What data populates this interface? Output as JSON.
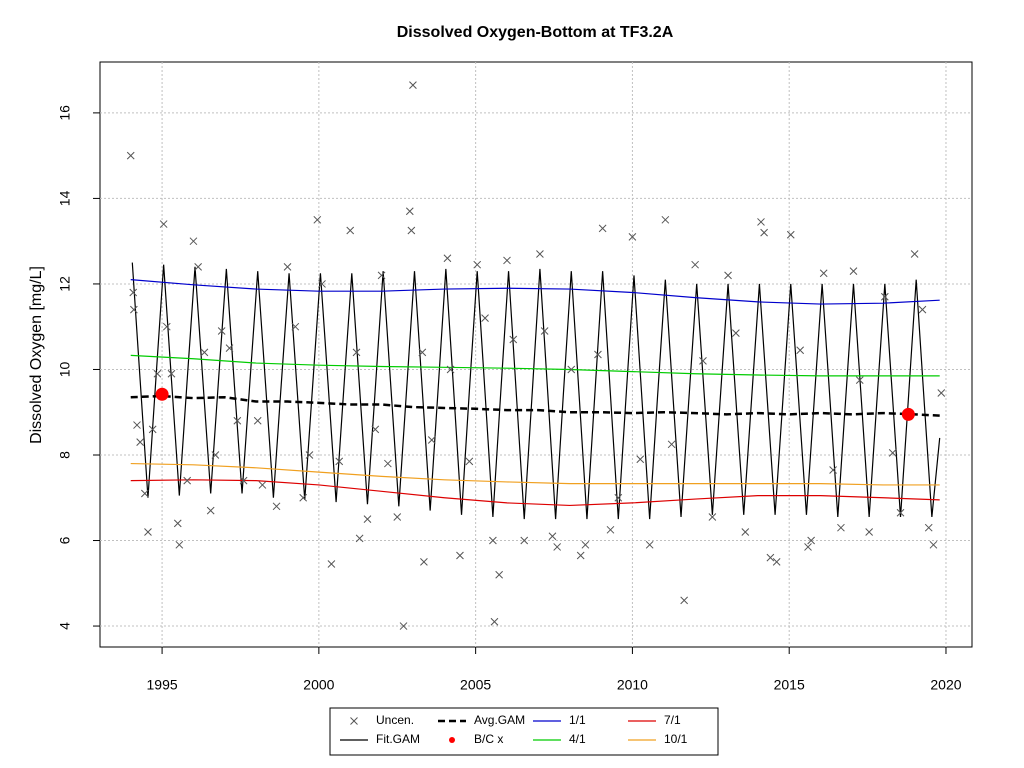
{
  "chart_data": {
    "type": "line",
    "title": "Dissolved Oxygen-Bottom at TF3.2A",
    "ylabel": "Dissolved Oxygen [mg/L]",
    "xlim": [
      1993.02,
      2020.83
    ],
    "ylim": [
      3.51,
      17.19
    ],
    "xticks": [
      1995,
      2000,
      2005,
      2010,
      2015,
      2020
    ],
    "yticks": [
      4,
      6,
      8,
      10,
      12,
      14,
      16
    ],
    "grid": true,
    "legend": "bottom",
    "series": [
      {
        "name": "Uncen.",
        "type": "scatter",
        "marker": "x",
        "color": "#555555",
        "x": [
          1994.0,
          1994.08,
          1994.1,
          1994.2,
          1994.3,
          1994.45,
          1994.55,
          1994.7,
          1994.85,
          1995.05,
          1995.15,
          1995.3,
          1995.5,
          1995.55,
          1995.8,
          1996.0,
          1996.15,
          1996.35,
          1996.55,
          1996.7,
          1996.9,
          1997.15,
          1997.4,
          1997.6,
          1998.05,
          1998.2,
          1998.65,
          1999.0,
          1999.25,
          1999.5,
          1999.7,
          1999.95,
          2000.1,
          2000.4,
          2000.65,
          2001.0,
          2001.2,
          2001.3,
          2001.55,
          2001.8,
          2002.0,
          2002.2,
          2002.5,
          2002.7,
          2002.9,
          2002.95,
          2003.0,
          2003.3,
          2003.35,
          2003.6,
          2004.1,
          2004.2,
          2004.5,
          2004.8,
          2005.05,
          2005.3,
          2005.55,
          2005.6,
          2005.75,
          2006.0,
          2006.2,
          2006.55,
          2007.05,
          2007.2,
          2007.45,
          2007.6,
          2008.05,
          2008.35,
          2008.5,
          2008.9,
          2009.05,
          2009.3,
          2009.55,
          2010.0,
          2010.25,
          2010.55,
          2011.05,
          2011.25,
          2011.65,
          2012.0,
          2012.25,
          2012.55,
          2013.05,
          2013.3,
          2013.6,
          2014.1,
          2014.2,
          2014.4,
          2014.6,
          2015.05,
          2015.35,
          2015.6,
          2015.7,
          2016.1,
          2016.4,
          2016.65,
          2017.05,
          2017.25,
          2017.55,
          2018.05,
          2018.3,
          2018.55,
          2019.0,
          2019.25,
          2019.45,
          2019.6,
          2019.85
        ],
        "values": [
          15.0,
          11.8,
          11.4,
          8.7,
          8.3,
          7.1,
          6.2,
          8.6,
          9.9,
          13.4,
          11.0,
          9.9,
          6.4,
          5.9,
          7.4,
          13.0,
          12.4,
          10.4,
          6.7,
          8.0,
          10.9,
          10.5,
          8.8,
          7.4,
          8.8,
          7.3,
          6.8,
          12.4,
          11.0,
          7.0,
          8.0,
          13.5,
          12.0,
          5.45,
          7.85,
          13.25,
          10.4,
          6.05,
          6.5,
          8.6,
          12.2,
          7.8,
          6.55,
          4.0,
          13.7,
          13.25,
          16.65,
          10.4,
          5.5,
          8.35,
          12.6,
          10.0,
          5.65,
          7.85,
          12.45,
          11.2,
          6.0,
          4.1,
          5.2,
          12.55,
          10.7,
          6.0,
          12.7,
          10.9,
          6.1,
          5.85,
          10.0,
          5.65,
          5.9,
          10.35,
          13.3,
          6.25,
          7.0,
          13.1,
          7.9,
          5.9,
          13.5,
          8.25,
          4.6,
          12.45,
          10.2,
          6.55,
          12.2,
          10.85,
          6.2,
          13.45,
          13.2,
          5.6,
          5.5,
          13.15,
          10.45,
          5.85,
          6.0,
          12.25,
          7.65,
          6.3,
          12.3,
          9.75,
          6.2,
          11.7,
          8.05,
          6.65,
          12.7,
          11.4,
          6.3,
          5.9,
          9.45
        ]
      },
      {
        "name": "Fit.GAM",
        "type": "line",
        "color": "#000000",
        "x": [
          1994.05,
          1994.3,
          1994.55,
          1994.8,
          1995.05,
          1995.3,
          1995.55,
          1995.8,
          1996.05,
          1996.3,
          1996.55,
          1996.8,
          1997.05,
          1997.3,
          1997.55,
          1997.8,
          1998.05,
          1998.3,
          1998.55,
          1998.8,
          1999.05,
          1999.3,
          1999.55,
          1999.8,
          2000.05,
          2000.3,
          2000.55,
          2000.8,
          2001.05,
          2001.3,
          2001.55,
          2001.8,
          2002.05,
          2002.3,
          2002.55,
          2002.8,
          2003.05,
          2003.3,
          2003.55,
          2003.8,
          2004.05,
          2004.3,
          2004.55,
          2004.8,
          2005.05,
          2005.3,
          2005.55,
          2005.8,
          2006.05,
          2006.3,
          2006.55,
          2006.8,
          2007.05,
          2007.3,
          2007.55,
          2007.8,
          2008.05,
          2008.3,
          2008.55,
          2008.8,
          2009.05,
          2009.3,
          2009.55,
          2009.8,
          2010.05,
          2010.3,
          2010.55,
          2010.8,
          2011.05,
          2011.3,
          2011.55,
          2011.8,
          2012.05,
          2012.3,
          2012.55,
          2012.8,
          2013.05,
          2013.3,
          2013.55,
          2013.8,
          2014.05,
          2014.3,
          2014.55,
          2014.8,
          2015.05,
          2015.3,
          2015.55,
          2015.8,
          2016.05,
          2016.3,
          2016.55,
          2016.8,
          2017.05,
          2017.3,
          2017.55,
          2017.8,
          2018.05,
          2018.3,
          2018.55,
          2018.8,
          2019.05,
          2019.3,
          2019.55,
          2019.8
        ],
        "values": [
          12.5,
          9.75,
          7.0,
          9.75,
          12.45,
          9.75,
          7.05,
          9.75,
          12.4,
          9.75,
          7.1,
          9.75,
          12.35,
          9.7,
          7.1,
          9.7,
          12.3,
          9.65,
          7.0,
          9.65,
          12.25,
          9.6,
          6.95,
          9.6,
          12.25,
          9.6,
          6.9,
          9.6,
          12.25,
          9.55,
          6.85,
          9.55,
          12.3,
          9.55,
          6.8,
          9.55,
          12.3,
          9.5,
          6.7,
          9.5,
          12.35,
          9.5,
          6.6,
          9.5,
          12.3,
          9.45,
          6.55,
          9.45,
          12.3,
          9.4,
          6.5,
          9.4,
          12.35,
          9.45,
          6.5,
          9.45,
          12.3,
          9.4,
          6.5,
          9.4,
          12.3,
          9.4,
          6.5,
          9.4,
          12.2,
          9.35,
          6.5,
          9.35,
          12.1,
          9.3,
          6.55,
          9.3,
          12.0,
          9.3,
          6.6,
          9.3,
          12.0,
          9.3,
          6.6,
          9.3,
          12.0,
          9.3,
          6.6,
          9.3,
          12.0,
          9.3,
          6.6,
          9.3,
          12.0,
          9.3,
          6.55,
          9.3,
          12.0,
          9.3,
          6.55,
          9.3,
          12.0,
          9.3,
          6.55,
          9.3,
          12.1,
          9.3,
          6.55,
          8.4
        ]
      },
      {
        "name": "Avg.GAM",
        "type": "line",
        "dashed": true,
        "color": "#000000",
        "x": [
          1994.0,
          1995.0,
          1996.0,
          1997.0,
          1998.0,
          1999.0,
          2000.0,
          2001.0,
          2002.0,
          2003.0,
          2004.0,
          2005.0,
          2006.0,
          2007.0,
          2008.0,
          2009.0,
          2010.0,
          2011.0,
          2012.0,
          2013.0,
          2014.0,
          2015.0,
          2016.0,
          2017.0,
          2018.0,
          2019.0,
          2019.8
        ],
        "values": [
          9.35,
          9.38,
          9.33,
          9.35,
          9.25,
          9.25,
          9.22,
          9.18,
          9.18,
          9.12,
          9.1,
          9.08,
          9.05,
          9.05,
          9.0,
          9.0,
          8.98,
          9.0,
          8.98,
          8.95,
          8.98,
          8.95,
          8.98,
          8.95,
          8.98,
          8.95,
          8.92
        ]
      },
      {
        "name": "B/C x",
        "type": "scatter",
        "marker": "dot",
        "color": "#ff0000",
        "x": [
          1995.0,
          2018.8
        ],
        "values": [
          9.42,
          8.95
        ]
      },
      {
        "name": "1/1",
        "type": "line",
        "color": "#0000cc",
        "x": [
          1994.0,
          1996.0,
          1998.0,
          2000.0,
          2002.0,
          2004.0,
          2006.0,
          2008.0,
          2010.0,
          2012.0,
          2014.0,
          2016.0,
          2018.0,
          2019.8
        ],
        "values": [
          12.1,
          11.98,
          11.88,
          11.83,
          11.83,
          11.88,
          11.9,
          11.88,
          11.8,
          11.68,
          11.58,
          11.53,
          11.55,
          11.62
        ]
      },
      {
        "name": "4/1",
        "type": "line",
        "color": "#00cc00",
        "x": [
          1994.0,
          1996.0,
          1998.0,
          2000.0,
          2002.0,
          2004.0,
          2006.0,
          2008.0,
          2010.0,
          2012.0,
          2014.0,
          2016.0,
          2018.0,
          2019.8
        ],
        "values": [
          10.33,
          10.25,
          10.15,
          10.1,
          10.07,
          10.05,
          10.03,
          10.0,
          9.95,
          9.9,
          9.87,
          9.85,
          9.85,
          9.85
        ]
      },
      {
        "name": "7/1",
        "type": "line",
        "color": "#dd0000",
        "x": [
          1994.0,
          1996.0,
          1998.0,
          2000.0,
          2002.0,
          2004.0,
          2006.0,
          2008.0,
          2010.0,
          2012.0,
          2014.0,
          2016.0,
          2018.0,
          2019.8
        ],
        "values": [
          7.4,
          7.42,
          7.4,
          7.3,
          7.15,
          7.0,
          6.88,
          6.82,
          6.88,
          6.97,
          7.05,
          7.05,
          7.0,
          6.95
        ]
      },
      {
        "name": "10/1",
        "type": "line",
        "color": "#f0a020",
        "x": [
          1994.0,
          1996.0,
          1998.0,
          2000.0,
          2002.0,
          2004.0,
          2006.0,
          2008.0,
          2010.0,
          2012.0,
          2014.0,
          2016.0,
          2018.0,
          2019.8
        ],
        "values": [
          7.8,
          7.77,
          7.7,
          7.6,
          7.5,
          7.42,
          7.37,
          7.33,
          7.33,
          7.33,
          7.33,
          7.33,
          7.3,
          7.3
        ]
      }
    ]
  }
}
